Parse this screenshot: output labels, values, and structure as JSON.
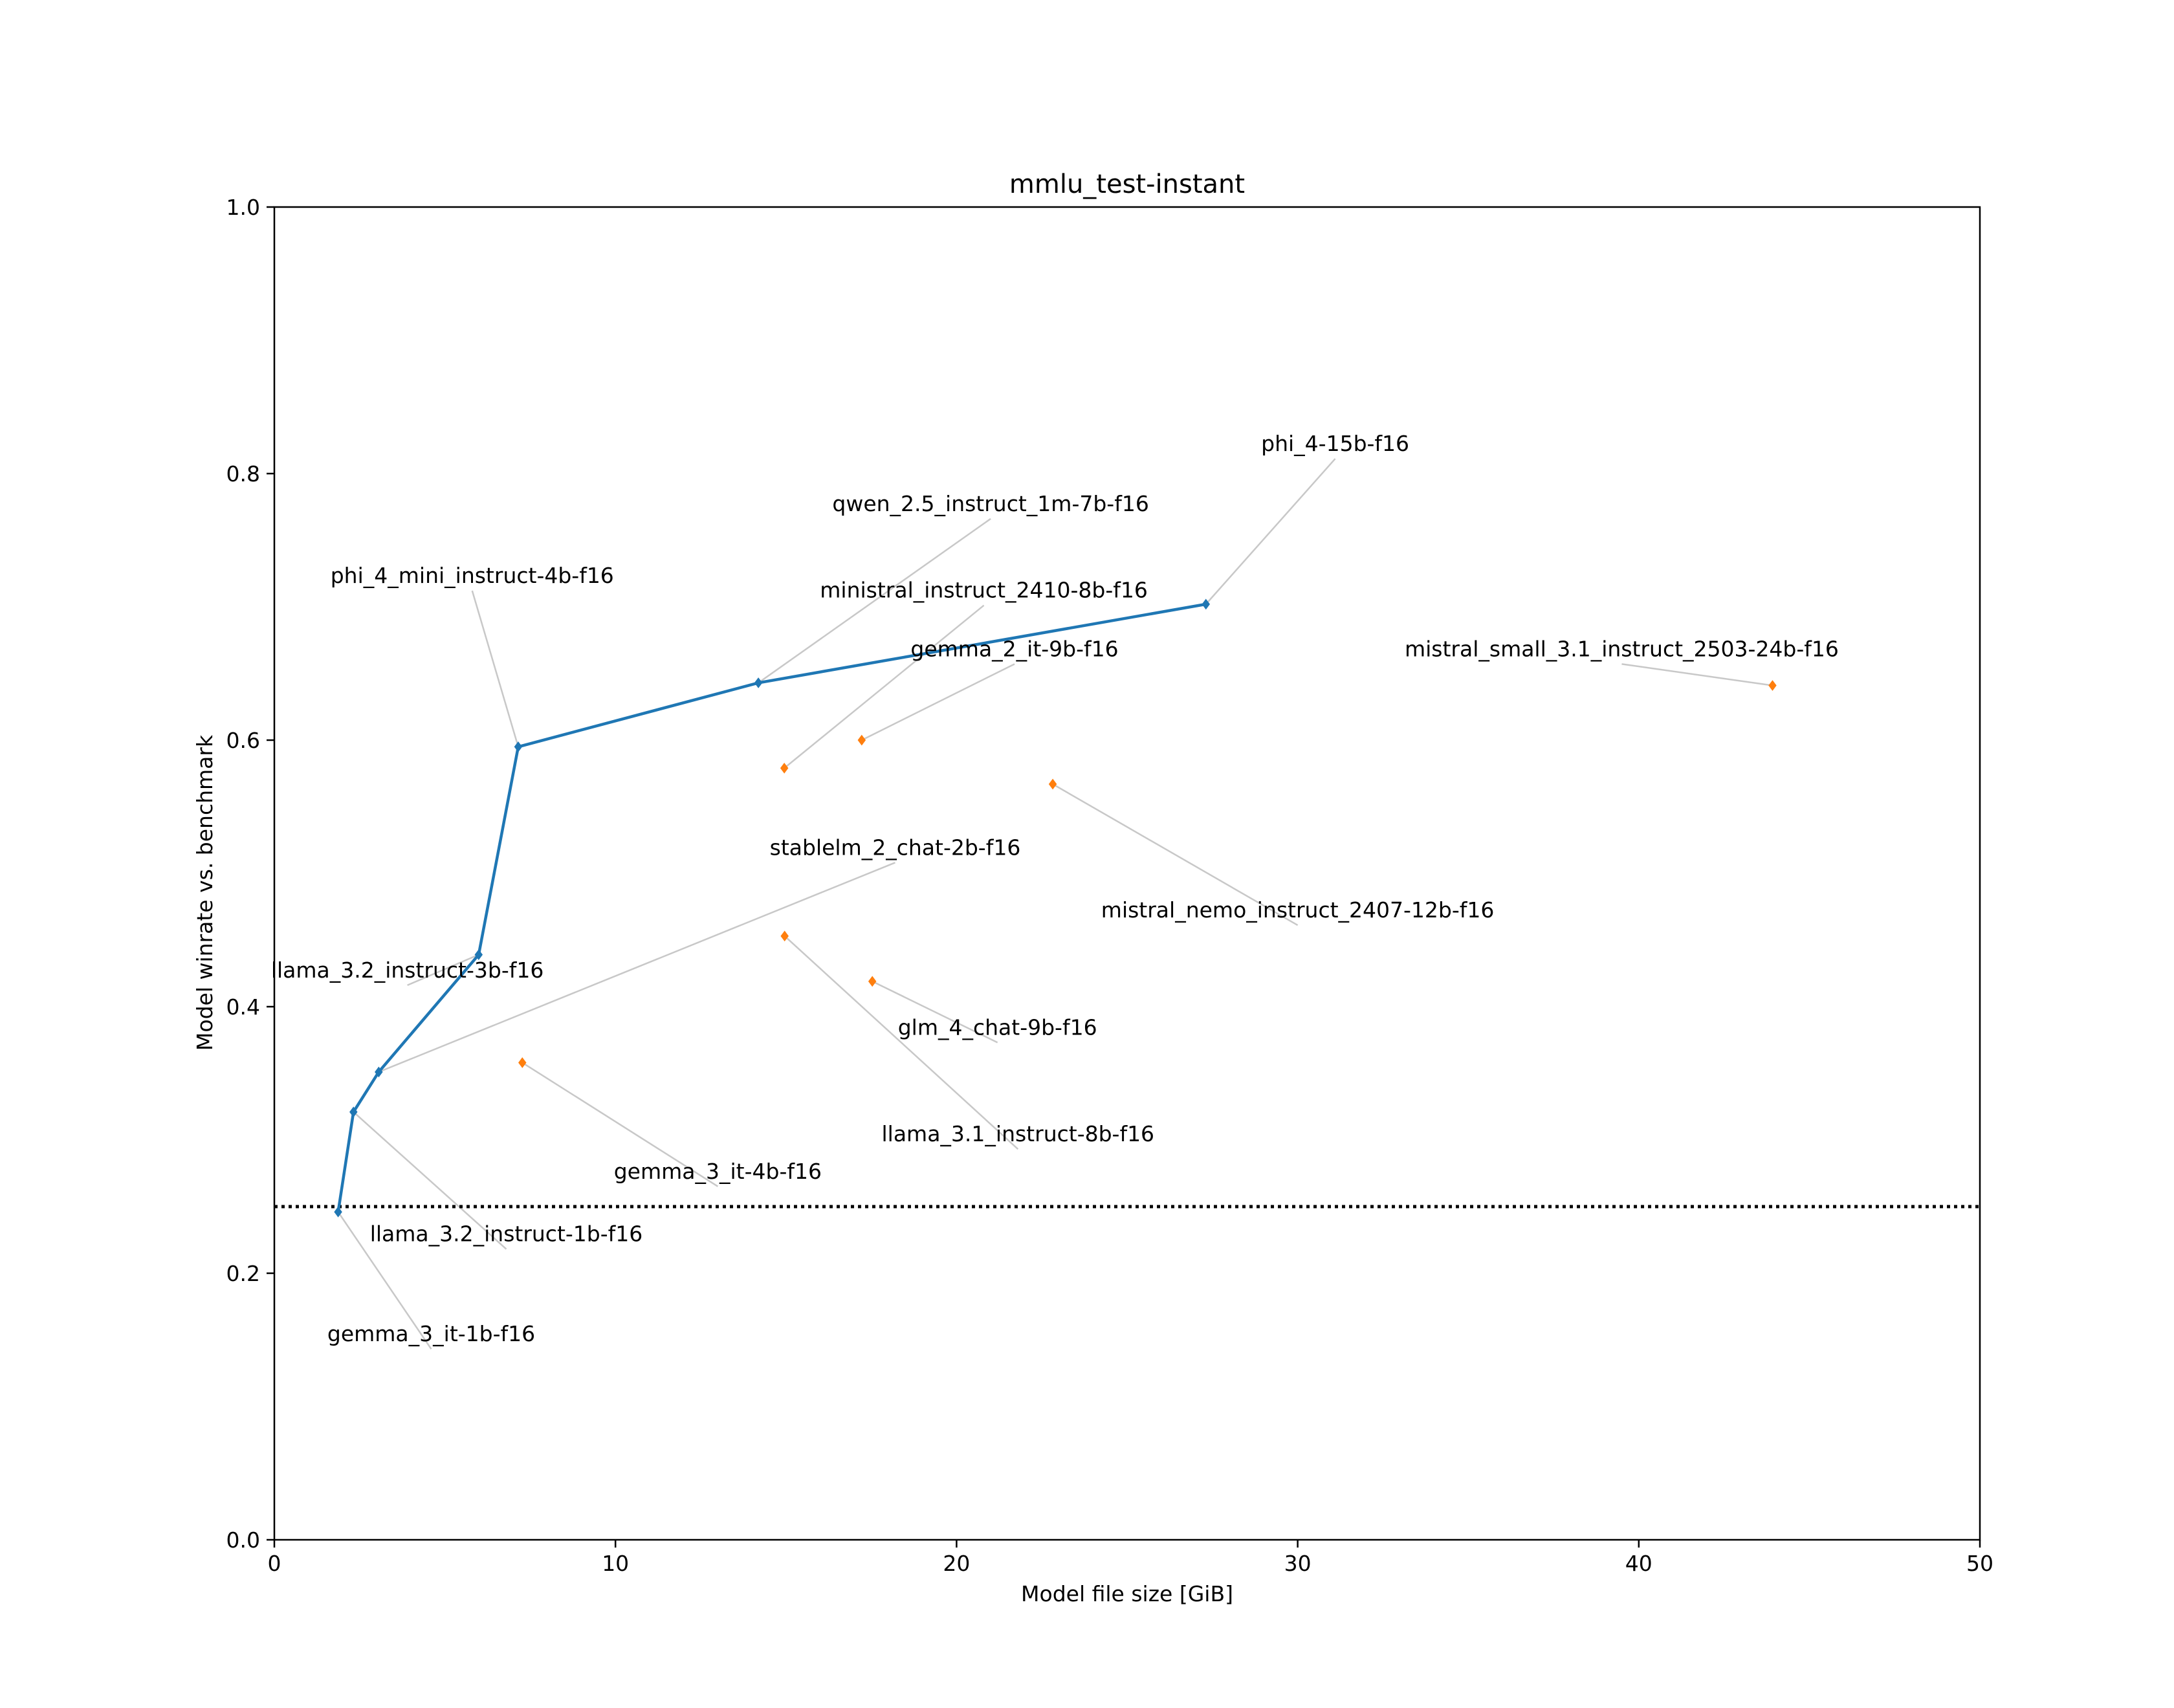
{
  "chart_data": {
    "type": "scatter",
    "title": "mmlu_test-instant",
    "xlabel": "Model file size [GiB]",
    "ylabel": "Model winrate vs. benchmark",
    "xlim": [
      0,
      50
    ],
    "ylim": [
      0.0,
      1.0
    ],
    "x_ticks": [
      "0",
      "10",
      "20",
      "30",
      "40",
      "50"
    ],
    "y_ticks": [
      "0.0",
      "0.2",
      "0.4",
      "0.6",
      "0.8",
      "1.0"
    ],
    "grid": false,
    "legend": "none",
    "baseline": {
      "y": 0.25,
      "style": "dotted",
      "color": "#000000"
    },
    "colors": {
      "pareto": "#1f77b4",
      "other": "#ff7f0e",
      "leader": "#c8c8c8"
    },
    "series": [
      {
        "role": "pareto-front",
        "connected": true,
        "points": [
          {
            "label": "gemma_3_it-1b-f16",
            "x": 1.87,
            "y": 0.246,
            "label_at": [
              4.6,
              0.147
            ]
          },
          {
            "label": "llama_3.2_instruct-1b-f16",
            "x": 2.32,
            "y": 0.321,
            "label_at": [
              6.8,
              0.222
            ]
          },
          {
            "label": "stablelm_2_chat-2b-f16",
            "x": 3.06,
            "y": 0.351,
            "label_at": [
              18.2,
              0.512
            ]
          },
          {
            "label": "llama_3.2_instruct-3b-f16",
            "x": 5.99,
            "y": 0.439,
            "label_at": [
              3.9,
              0.42
            ]
          },
          {
            "label": "phi_4_mini_instruct-4b-f16",
            "x": 7.15,
            "y": 0.595,
            "label_at": [
              5.8,
              0.716
            ]
          },
          {
            "label": "qwen_2.5_instruct_1m-7b-f16",
            "x": 14.19,
            "y": 0.643,
            "label_at": [
              21.0,
              0.77
            ]
          },
          {
            "label": "phi_4-15b-f16",
            "x": 27.31,
            "y": 0.702,
            "label_at": [
              31.1,
              0.815
            ]
          }
        ]
      },
      {
        "role": "other",
        "connected": false,
        "points": [
          {
            "label": "ministral_instruct_2410-8b-f16",
            "x": 14.95,
            "y": 0.579,
            "label_at": [
              20.8,
              0.705
            ]
          },
          {
            "label": "gemma_2_it-9b-f16",
            "x": 17.22,
            "y": 0.6,
            "label_at": [
              21.7,
              0.661
            ]
          },
          {
            "label": "mistral_small_3.1_instruct_2503-24b-f16",
            "x": 43.92,
            "y": 0.641,
            "label_at": [
              39.5,
              0.661
            ]
          },
          {
            "label": "mistral_nemo_instruct_2407-12b-f16",
            "x": 22.82,
            "y": 0.567,
            "label_at": [
              30.0,
              0.465
            ]
          },
          {
            "label": "llama_3.1_instruct-8b-f16",
            "x": 14.96,
            "y": 0.453,
            "label_at": [
              21.8,
              0.297
            ]
          },
          {
            "label": "glm_4_chat-9b-f16",
            "x": 17.53,
            "y": 0.419,
            "label_at": [
              21.2,
              0.377
            ]
          },
          {
            "label": "gemma_3_it-4b-f16",
            "x": 7.27,
            "y": 0.358,
            "label_at": [
              13.0,
              0.269
            ]
          }
        ]
      }
    ]
  }
}
